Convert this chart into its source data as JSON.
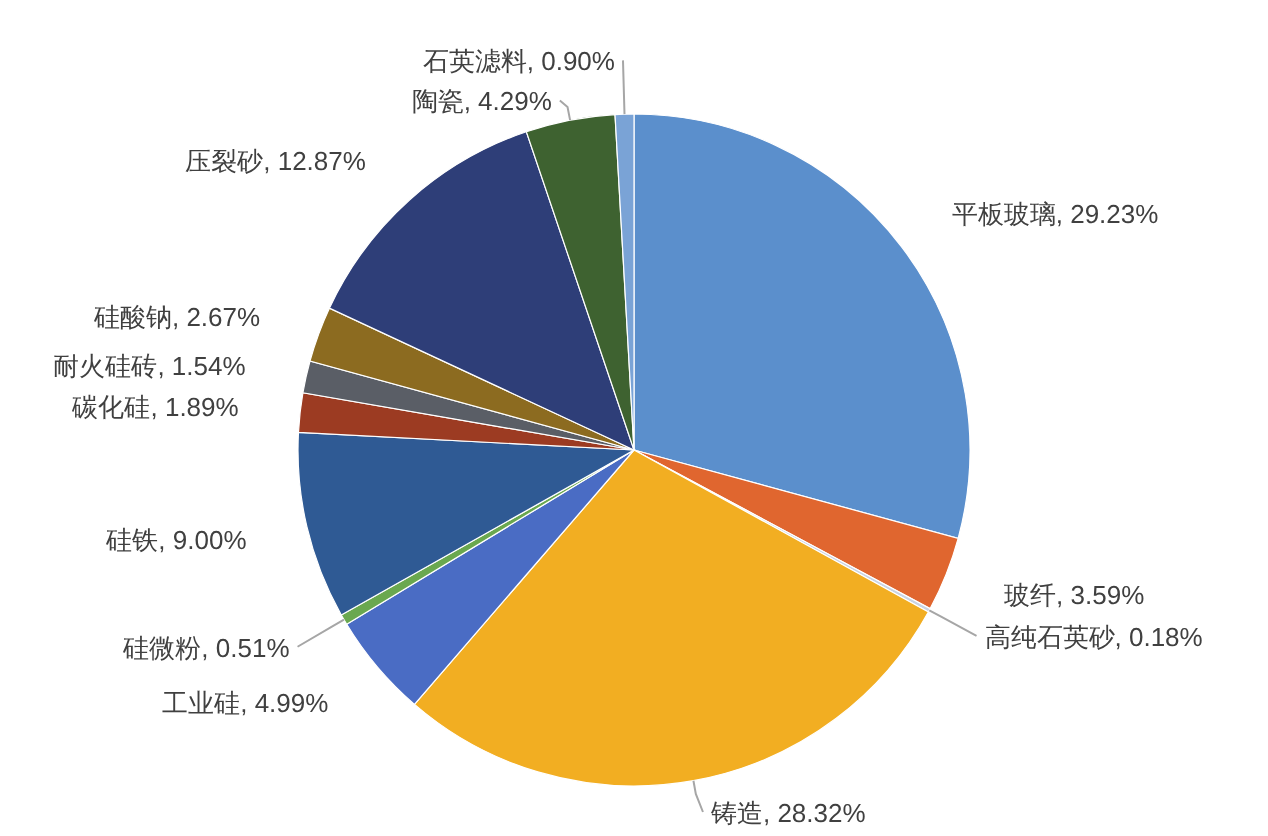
{
  "chart_data": {
    "type": "pie",
    "categories": [
      "平板玻璃",
      "玻纤",
      "高纯石英砂",
      "铸造",
      "工业硅",
      "硅微粉",
      "硅铁",
      "碳化硅",
      "耐火硅砖",
      "硅酸钠",
      "压裂砂",
      "陶瓷",
      "石英滤料"
    ],
    "values": [
      29.23,
      3.59,
      0.18,
      28.32,
      4.99,
      0.51,
      9.0,
      1.89,
      1.54,
      2.67,
      12.87,
      4.29,
      0.9
    ],
    "value_labels": [
      "29.23%",
      "3.59%",
      "0.18%",
      "28.32%",
      "4.99%",
      "0.51%",
      "9.00%",
      "1.89%",
      "1.54%",
      "2.67%",
      "12.87%",
      "4.29%",
      "0.90%"
    ],
    "colors": [
      "#5b8fcc",
      "#e0662f",
      "#c9d3e3",
      "#f2ae22",
      "#4a6cc4",
      "#6aa84f",
      "#2f5a94",
      "#9c3b22",
      "#5a5e66",
      "#8c6b20",
      "#2e3e78",
      "#3e6230",
      "#7aa3d6"
    ]
  }
}
